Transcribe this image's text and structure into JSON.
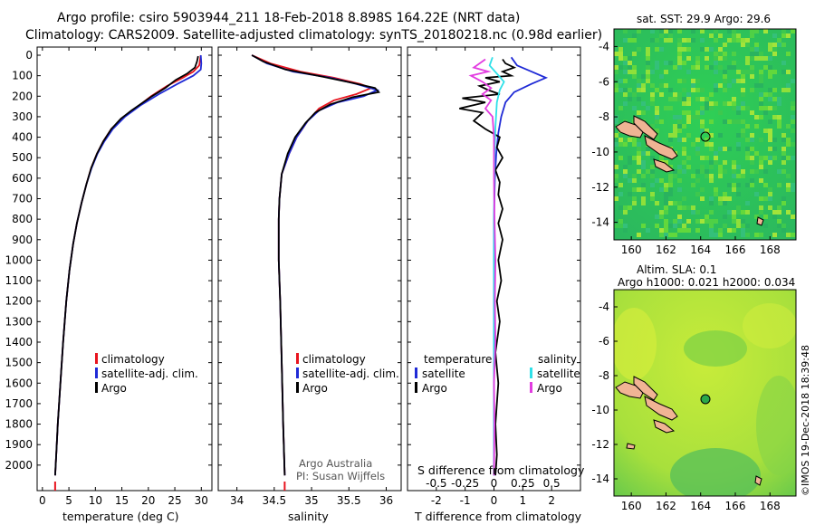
{
  "title_line1": "Argo profile: csiro 5903944_211 18-Feb-2018 8.898S 164.22E (NRT data)",
  "title_line2": "Climatology: CARS2009. Satellite-adjusted climatology: synTS_20180218.nc (0.98d earlier)",
  "depth_ticks": [
    "0",
    "100",
    "200",
    "300",
    "400",
    "500",
    "600",
    "700",
    "800",
    "900",
    "1000",
    "1100",
    "1200",
    "1300",
    "1400",
    "1500",
    "1600",
    "1700",
    "1800",
    "1900",
    "2000"
  ],
  "colors": {
    "climatology": "#e8141e",
    "satellite": "#1f2ad6",
    "argo": "#000000",
    "sat_salinity": "#2fe0e8",
    "argo_salinity": "#e23ce0"
  },
  "chart_data": [
    {
      "type": "line",
      "xlabel": "temperature (deg C)",
      "xlim": [
        -1,
        32
      ],
      "ylim": [
        2050,
        0
      ],
      "xticks": [
        "0",
        "5",
        "10",
        "15",
        "20",
        "25",
        "30"
      ],
      "xtick_values": [
        0,
        5,
        10,
        15,
        20,
        25,
        30
      ],
      "legend": [
        "climatology",
        "satellite-adj. clim.",
        "Argo"
      ],
      "series": [
        {
          "name": "climatology",
          "color": "#e8141e",
          "points": [
            [
              29.9,
              0
            ],
            [
              29.6,
              50
            ],
            [
              28.5,
              80
            ],
            [
              26.5,
              110
            ],
            [
              23.5,
              150
            ],
            [
              20.5,
              200
            ],
            [
              17.5,
              260
            ],
            [
              15,
              310
            ],
            [
              13,
              360
            ],
            [
              11.5,
              420
            ],
            [
              10.3,
              480
            ],
            [
              9.2,
              550
            ],
            [
              8.3,
              630
            ],
            [
              7.4,
              720
            ],
            [
              6.5,
              820
            ],
            [
              5.8,
              920
            ],
            [
              5.1,
              1050
            ],
            [
              4.5,
              1200
            ],
            [
              3.9,
              1400
            ],
            [
              3.4,
              1600
            ],
            [
              2.9,
              1800
            ],
            [
              2.6,
              1950
            ],
            [
              2.4,
              2050
            ]
          ]
        },
        {
          "name": "satellite-adj. clim.",
          "color": "#1f2ad6",
          "points": [
            [
              29.9,
              0
            ],
            [
              30.0,
              40
            ],
            [
              29.9,
              70
            ],
            [
              28.5,
              100
            ],
            [
              25.5,
              140
            ],
            [
              22,
              190
            ],
            [
              18.5,
              245
            ],
            [
              15.6,
              300
            ],
            [
              13.3,
              360
            ],
            [
              11.7,
              420
            ],
            [
              10.4,
              480
            ],
            [
              9.3,
              550
            ],
            [
              8.3,
              630
            ],
            [
              7.4,
              720
            ],
            [
              6.5,
              820
            ],
            [
              5.8,
              920
            ],
            [
              5.1,
              1050
            ],
            [
              4.5,
              1200
            ],
            [
              3.9,
              1400
            ],
            [
              3.4,
              1600
            ],
            [
              2.9,
              1800
            ],
            [
              2.6,
              1950
            ],
            [
              2.4,
              2050
            ]
          ]
        },
        {
          "name": "Argo",
          "color": "#000000",
          "points": [
            [
              29.4,
              5
            ],
            [
              29.2,
              30
            ],
            [
              28.8,
              60
            ],
            [
              27.3,
              90
            ],
            [
              25.2,
              120
            ],
            [
              23.2,
              160
            ],
            [
              20.7,
              200
            ],
            [
              19.0,
              230
            ],
            [
              16.8,
              270
            ],
            [
              14.8,
              310
            ],
            [
              13.0,
              360
            ],
            [
              11.5,
              420
            ],
            [
              10.3,
              480
            ],
            [
              9.2,
              550
            ],
            [
              8.3,
              630
            ],
            [
              7.4,
              720
            ],
            [
              6.5,
              820
            ],
            [
              5.8,
              920
            ],
            [
              5.1,
              1050
            ],
            [
              4.5,
              1200
            ],
            [
              3.9,
              1400
            ],
            [
              3.4,
              1600
            ],
            [
              2.9,
              1800
            ],
            [
              2.6,
              1950
            ],
            [
              2.4,
              2050
            ]
          ]
        }
      ]
    },
    {
      "type": "line",
      "xlabel": "salinity",
      "xlim": [
        33.75,
        36.2
      ],
      "ylim": [
        2050,
        0
      ],
      "xticks": [
        "34",
        "34.5",
        "35",
        "35.5",
        "36"
      ],
      "xtick_values": [
        34,
        34.5,
        35,
        35.5,
        36
      ],
      "legend": [
        "climatology",
        "satellite-adj. clim.",
        "Argo"
      ],
      "note": [
        "Argo Australia",
        "PI: Susan Wijffels"
      ],
      "series": [
        {
          "name": "climatology",
          "color": "#e8141e",
          "points": [
            [
              34.2,
              0
            ],
            [
              34.45,
              40
            ],
            [
              34.85,
              80
            ],
            [
              35.3,
              110
            ],
            [
              35.65,
              140
            ],
            [
              35.8,
              160
            ],
            [
              35.6,
              190
            ],
            [
              35.3,
              220
            ],
            [
              35.1,
              260
            ],
            [
              34.95,
              320
            ],
            [
              34.8,
              400
            ],
            [
              34.7,
              480
            ],
            [
              34.6,
              580
            ],
            [
              34.57,
              700
            ],
            [
              34.56,
              800
            ],
            [
              34.56,
              1000
            ],
            [
              34.58,
              1200
            ],
            [
              34.6,
              1500
            ],
            [
              34.62,
              1800
            ],
            [
              34.64,
              2050
            ]
          ]
        },
        {
          "name": "satellite-adj. clim.",
          "color": "#1f2ad6",
          "points": [
            [
              34.2,
              0
            ],
            [
              34.4,
              40
            ],
            [
              34.75,
              80
            ],
            [
              35.25,
              110
            ],
            [
              35.6,
              140
            ],
            [
              35.88,
              170
            ],
            [
              35.7,
              200
            ],
            [
              35.35,
              230
            ],
            [
              35.1,
              270
            ],
            [
              34.95,
              320
            ],
            [
              34.8,
              400
            ],
            [
              34.7,
              480
            ],
            [
              34.6,
              580
            ],
            [
              34.57,
              700
            ],
            [
              34.56,
              800
            ],
            [
              34.56,
              1000
            ],
            [
              34.58,
              1200
            ],
            [
              34.6,
              1500
            ],
            [
              34.62,
              1800
            ],
            [
              34.64,
              2050
            ]
          ]
        },
        {
          "name": "Argo",
          "color": "#000000",
          "points": [
            [
              34.2,
              0
            ],
            [
              34.35,
              30
            ],
            [
              34.65,
              70
            ],
            [
              35.15,
              105
            ],
            [
              35.55,
              135
            ],
            [
              35.85,
              160
            ],
            [
              35.9,
              180
            ],
            [
              35.55,
              205
            ],
            [
              35.25,
              240
            ],
            [
              35.05,
              280
            ],
            [
              34.92,
              330
            ],
            [
              34.78,
              400
            ],
            [
              34.68,
              480
            ],
            [
              34.6,
              580
            ],
            [
              34.57,
              700
            ],
            [
              34.56,
              800
            ],
            [
              34.56,
              1000
            ],
            [
              34.58,
              1200
            ],
            [
              34.6,
              1500
            ],
            [
              34.62,
              1800
            ],
            [
              34.64,
              2050
            ]
          ]
        }
      ]
    },
    {
      "type": "line",
      "xlabel": "T difference from climatology",
      "top_label": "S difference from climatology",
      "xlim": [
        -3.0,
        3.0
      ],
      "ylim": [
        2050,
        0
      ],
      "xticks": [
        "-2",
        "-1",
        "0",
        "1",
        "2"
      ],
      "xtick_values": [
        -2,
        -1,
        0,
        1,
        2
      ],
      "s_ticks": [
        "-0.5",
        "-0.25",
        "0",
        "0.25",
        "0.5"
      ],
      "s_tick_values": [
        -0.5,
        -0.25,
        0,
        0.25,
        0.5
      ],
      "legend_temperature_title": "temperature",
      "legend_salinity_title": "salinity",
      "legend_temperature": [
        "satellite",
        "Argo"
      ],
      "legend_salinity": [
        "satellite",
        "Argo"
      ],
      "series": [
        {
          "name": "temperature satellite",
          "color": "#1f2ad6",
          "points": [
            [
              0.6,
              10
            ],
            [
              0.8,
              50
            ],
            [
              1.3,
              80
            ],
            [
              1.8,
              110
            ],
            [
              1.3,
              140
            ],
            [
              0.7,
              180
            ],
            [
              0.4,
              230
            ],
            [
              0.25,
              300
            ],
            [
              0.15,
              380
            ],
            [
              0.08,
              480
            ],
            [
              0.03,
              600
            ],
            [
              0,
              800
            ],
            [
              0,
              1200
            ],
            [
              0,
              2050
            ]
          ]
        },
        {
          "name": "temperature Argo",
          "color": "#000000",
          "points": [
            [
              0.3,
              20
            ],
            [
              0.4,
              40
            ],
            [
              0.7,
              60
            ],
            [
              0.3,
              80
            ],
            [
              0.6,
              100
            ],
            [
              -0.3,
              110
            ],
            [
              0.2,
              130
            ],
            [
              -0.5,
              150
            ],
            [
              -0.2,
              170
            ],
            [
              0.2,
              190
            ],
            [
              -1.1,
              210
            ],
            [
              -0.3,
              230
            ],
            [
              -1.2,
              260
            ],
            [
              -0.4,
              280
            ],
            [
              -0.7,
              320
            ],
            [
              -0.3,
              360
            ],
            [
              0.2,
              400
            ],
            [
              0.1,
              450
            ],
            [
              0.3,
              500
            ],
            [
              0.05,
              560
            ],
            [
              0.2,
              620
            ],
            [
              0.15,
              680
            ],
            [
              0.3,
              750
            ],
            [
              0.15,
              820
            ],
            [
              0.3,
              900
            ],
            [
              0.15,
              1000
            ],
            [
              0.25,
              1100
            ],
            [
              0.1,
              1200
            ],
            [
              0.2,
              1300
            ],
            [
              0.05,
              1450
            ],
            [
              0.15,
              1600
            ],
            [
              0.05,
              1800
            ],
            [
              0.1,
              1950
            ],
            [
              0.05,
              2050
            ]
          ]
        },
        {
          "name": "salinity satellite",
          "color": "#2fe0e8",
          "points": [
            [
              -0.05,
              10
            ],
            [
              -0.15,
              50
            ],
            [
              0.1,
              90
            ],
            [
              0.35,
              130
            ],
            [
              0.2,
              170
            ],
            [
              0.1,
              230
            ],
            [
              0.05,
              350
            ],
            [
              0.02,
              500
            ],
            [
              0,
              800
            ],
            [
              0,
              2050
            ]
          ]
        },
        {
          "name": "salinity Argo",
          "color": "#e23ce0",
          "points": [
            [
              -0.3,
              20
            ],
            [
              -0.7,
              60
            ],
            [
              -0.2,
              80
            ],
            [
              -0.8,
              100
            ],
            [
              -0.4,
              130
            ],
            [
              -0.1,
              160
            ],
            [
              -0.4,
              190
            ],
            [
              -0.1,
              220
            ],
            [
              -0.3,
              260
            ],
            [
              -0.05,
              300
            ],
            [
              0,
              400
            ],
            [
              0,
              600
            ],
            [
              0.02,
              800
            ],
            [
              0.05,
              1000
            ],
            [
              0.03,
              1200
            ],
            [
              0.05,
              1400
            ],
            [
              0,
              1600
            ],
            [
              0.02,
              1800
            ],
            [
              0,
              2050
            ]
          ]
        }
      ]
    }
  ],
  "maps": {
    "sst": {
      "title": "sat. SST: 29.9 Argo: 29.6",
      "lon_ticks": [
        "160",
        "162",
        "164",
        "166",
        "168"
      ],
      "lat_ticks": [
        "-4",
        "-6",
        "-8",
        "-10",
        "-12",
        "-14"
      ]
    },
    "sla": {
      "title1": "Altim. SLA: 0.1",
      "title2": "Argo h1000: 0.021 h2000: 0.034",
      "lon_ticks": [
        "160",
        "162",
        "164",
        "166",
        "168"
      ],
      "lat_ticks": [
        "-4",
        "-6",
        "-8",
        "-10",
        "-12",
        "-14"
      ]
    },
    "float_position": {
      "lat": -8.898,
      "lon": 164.22
    }
  },
  "watermark": "©IMOS 19-Dec-2018 18:39:48"
}
